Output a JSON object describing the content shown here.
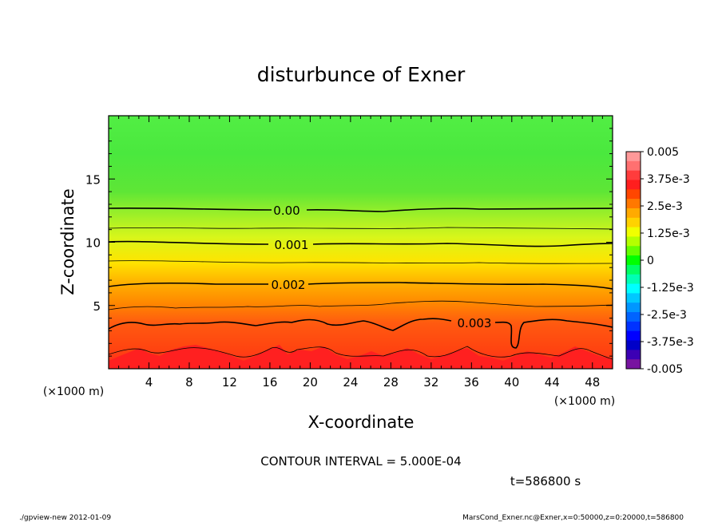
{
  "chart_data": {
    "type": "heatmap",
    "title": "disturbunce of Exner",
    "xlabel": "X-coordinate",
    "ylabel": "Z-coordinate",
    "x_unit": "(×1000 m)",
    "y_unit": "(×1000 m)",
    "xlim": [
      0,
      50
    ],
    "ylim": [
      0,
      20
    ],
    "x_ticks": [
      4,
      8,
      12,
      16,
      20,
      24,
      28,
      32,
      36,
      40,
      44,
      48
    ],
    "y_ticks": [
      5,
      10,
      15
    ],
    "colorbar": {
      "min": -0.005,
      "max": 0.005,
      "labels": [
        "0.005",
        "3.75e-3",
        "2.5e-3",
        "1.25e-3",
        "0",
        "-1.25e-3",
        "-2.5e-3",
        "-3.75e-3",
        "-0.005"
      ],
      "colors": [
        "#ff9999",
        "#ff7070",
        "#ff3c3c",
        "#ff1e1e",
        "#ff4600",
        "#ff7800",
        "#ffaa00",
        "#ffd200",
        "#f0ff00",
        "#b4ff00",
        "#64ff00",
        "#00ff00",
        "#00ff64",
        "#00ffb4",
        "#00ffff",
        "#00c8ff",
        "#0096ff",
        "#0064ff",
        "#0032ff",
        "#0000ff",
        "#0000c8",
        "#3c00b4",
        "#7814a0"
      ]
    },
    "contour_labels": [
      {
        "text": "0.00",
        "x": 17.2,
        "z": 12.5
      },
      {
        "text": "0.001",
        "x": 18.2,
        "z": 9.9
      },
      {
        "text": "0.002",
        "x": 18.2,
        "z": 6.7
      },
      {
        "text": "0.003",
        "x": 36.8,
        "z": 3.6
      }
    ],
    "contour_levels": [
      0.0,
      0.0005,
      0.001,
      0.0015,
      0.002,
      0.0025,
      0.003,
      0.0035,
      0.004
    ],
    "contour_interval": "CONTOUR INTERVAL = 5.000E-04",
    "time": "t=586800 s"
  },
  "footer": {
    "left": "./gpview-new   2012-01-09",
    "right": "MarsCond_Exner.nc@Exner,x=0:50000,z=0:20000,t=586800"
  }
}
